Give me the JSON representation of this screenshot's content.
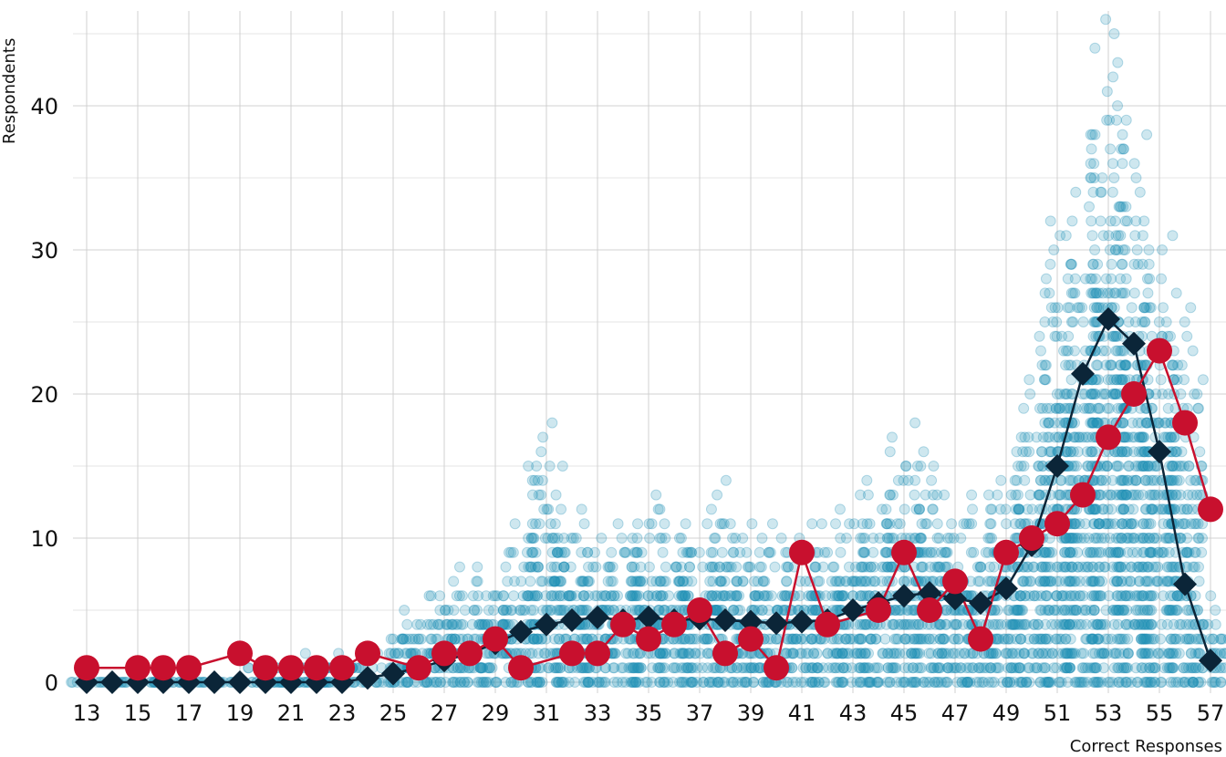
{
  "chart_data": {
    "type": "scatter",
    "title": "",
    "xlabel": "Correct Responses",
    "ylabel": "Respondents",
    "xlim": [
      13,
      57
    ],
    "ylim": [
      0,
      46
    ],
    "x_ticks": [
      "13",
      "15",
      "17",
      "19",
      "21",
      "23",
      "25",
      "27",
      "29",
      "31",
      "33",
      "35",
      "37",
      "39",
      "41",
      "43",
      "45",
      "47",
      "49",
      "51",
      "53",
      "55",
      "57"
    ],
    "y_ticks": [
      "0",
      "10",
      "20",
      "30",
      "40"
    ],
    "grid": true,
    "legend": "none",
    "colors": {
      "scatter": "#2190b5",
      "diamond_series": "#0b2538",
      "circle_series": "#c8102e",
      "grid": "#d0d0d0"
    },
    "scatter_range_by_x": {
      "x": [
        13,
        14,
        15,
        16,
        17,
        18,
        19,
        20,
        21,
        22,
        23,
        24,
        25,
        26,
        27,
        28,
        29,
        30,
        31,
        32,
        33,
        34,
        35,
        36,
        37,
        38,
        39,
        40,
        41,
        42,
        43,
        44,
        45,
        46,
        47,
        48,
        49,
        50,
        51,
        52,
        53,
        54,
        55,
        56,
        57
      ],
      "max": [
        0,
        0,
        0,
        0,
        0,
        0,
        1,
        1,
        2,
        1,
        2,
        2,
        4,
        5,
        8,
        8,
        8,
        11,
        18,
        12,
        11,
        11,
        13,
        12,
        11,
        14,
        11,
        11,
        11,
        11,
        13,
        14,
        18,
        16,
        13,
        11,
        16,
        21,
        32,
        35,
        46,
        38,
        31,
        26,
        6
      ]
    },
    "series": [
      {
        "marker": "diamond",
        "x": [
          13,
          14,
          15,
          16,
          17,
          18,
          19,
          20,
          21,
          22,
          23,
          24,
          25,
          26,
          27,
          28,
          29,
          30,
          31,
          32,
          33,
          34,
          35,
          36,
          37,
          38,
          39,
          40,
          41,
          42,
          43,
          44,
          45,
          46,
          47,
          48,
          49,
          50,
          51,
          52,
          53,
          54,
          55,
          56,
          57
        ],
        "y": [
          0,
          0,
          0,
          0,
          0,
          0,
          0,
          0,
          0,
          0,
          0,
          0.3,
          0.6,
          1,
          1.5,
          2,
          2.7,
          3.5,
          4,
          4.3,
          4.5,
          4.3,
          4.5,
          4.3,
          4.4,
          4.3,
          4.2,
          4.1,
          4.2,
          4.3,
          5,
          5.5,
          6,
          6.2,
          5.8,
          5.5,
          6.5,
          9.5,
          15,
          21.4,
          25.2,
          23.5,
          16,
          6.8,
          1.5
        ]
      },
      {
        "marker": "circle",
        "x": [
          13,
          15,
          16,
          17,
          19,
          20,
          21,
          22,
          23,
          24,
          26,
          27,
          28,
          29,
          30,
          32,
          33,
          34,
          35,
          36,
          37,
          38,
          39,
          40,
          41,
          42,
          44,
          45,
          46,
          47,
          48,
          49,
          50,
          51,
          52,
          53,
          54,
          55,
          56,
          57
        ],
        "y": [
          1,
          1,
          1,
          1,
          2,
          1,
          1,
          1,
          1,
          2,
          1,
          2,
          2,
          3,
          1,
          2,
          2,
          4,
          3,
          4,
          5,
          2,
          3,
          1,
          9,
          4,
          5,
          9,
          5,
          7,
          3,
          9,
          10,
          11,
          13,
          17,
          20,
          23,
          18,
          12
        ]
      }
    ]
  }
}
